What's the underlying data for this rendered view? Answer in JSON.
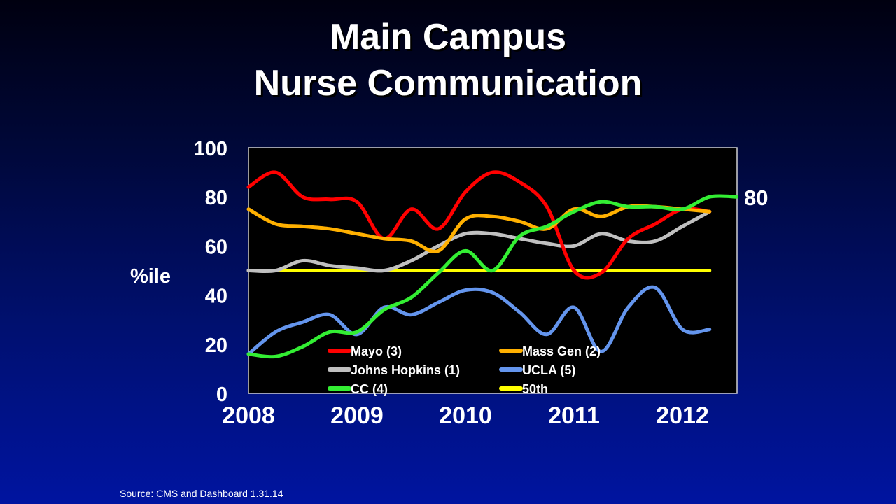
{
  "title_line1": "Main Campus",
  "title_line2": "Nurse Communication",
  "source": "Source: CMS and Dashboard  1.31.14",
  "chart_data": {
    "type": "line",
    "ylabel": "%ile",
    "ylim": [
      0,
      100
    ],
    "yticks": [
      "0",
      "20",
      "40",
      "60",
      "80",
      "100"
    ],
    "xlim": [
      2008,
      2012.5
    ],
    "xticks": [
      "2008",
      "2009",
      "2010",
      "2011",
      "2012"
    ],
    "end_label": "80",
    "legend_position": "bottom-center",
    "series": [
      {
        "name": "Mayo (3)",
        "color": "#ff0000",
        "x": [
          2008,
          2008.25,
          2008.5,
          2008.75,
          2009,
          2009.25,
          2009.5,
          2009.75,
          2010,
          2010.25,
          2010.5,
          2010.75,
          2011,
          2011.25,
          2011.5,
          2011.75,
          2012,
          2012.25
        ],
        "y": [
          84,
          90,
          80,
          79,
          78,
          63,
          75,
          67,
          82,
          90,
          86,
          76,
          50,
          49,
          63,
          69,
          75,
          74
        ]
      },
      {
        "name": "Mass Gen (2)",
        "color": "#ffb000",
        "x": [
          2008,
          2008.25,
          2008.5,
          2008.75,
          2009,
          2009.25,
          2009.5,
          2009.75,
          2010,
          2010.25,
          2010.5,
          2010.75,
          2011,
          2011.25,
          2011.5,
          2011.75,
          2012,
          2012.25
        ],
        "y": [
          75,
          69,
          68,
          67,
          65,
          63,
          62,
          58,
          71,
          72,
          70,
          67,
          75,
          72,
          76,
          76,
          75,
          74
        ]
      },
      {
        "name": "Johns Hopkins (1)",
        "color": "#c0c0c0",
        "x": [
          2008,
          2008.25,
          2008.5,
          2008.75,
          2009,
          2009.25,
          2009.5,
          2009.75,
          2010,
          2010.25,
          2010.5,
          2010.75,
          2011,
          2011.25,
          2011.5,
          2011.75,
          2012,
          2012.25
        ],
        "y": [
          50,
          50,
          54,
          52,
          51,
          50,
          54,
          60,
          65,
          65,
          63,
          61,
          60,
          65,
          62,
          62,
          68,
          74
        ]
      },
      {
        "name": "UCLA (5)",
        "color": "#6495ed",
        "x": [
          2008,
          2008.25,
          2008.5,
          2008.75,
          2009,
          2009.25,
          2009.5,
          2009.75,
          2010,
          2010.25,
          2010.5,
          2010.75,
          2011,
          2011.25,
          2011.5,
          2011.75,
          2012,
          2012.25
        ],
        "y": [
          16,
          25,
          29,
          32,
          24,
          35,
          32,
          37,
          42,
          41,
          33,
          24,
          35,
          17,
          35,
          43,
          26,
          26
        ]
      },
      {
        "name": "CC (4)",
        "color": "#33ee33",
        "x": [
          2008,
          2008.25,
          2008.5,
          2008.75,
          2009,
          2009.25,
          2009.5,
          2009.75,
          2010,
          2010.25,
          2010.5,
          2010.75,
          2011,
          2011.25,
          2011.5,
          2011.75,
          2012,
          2012.25,
          2012.5
        ],
        "y": [
          16,
          15,
          19,
          25,
          25,
          34,
          39,
          49,
          58,
          50,
          64,
          68,
          74,
          78,
          76,
          76,
          75,
          80,
          80
        ]
      },
      {
        "name": "50th",
        "color": "#ffff00",
        "x": [
          2008,
          2012.25
        ],
        "y": [
          50,
          50
        ]
      }
    ]
  }
}
